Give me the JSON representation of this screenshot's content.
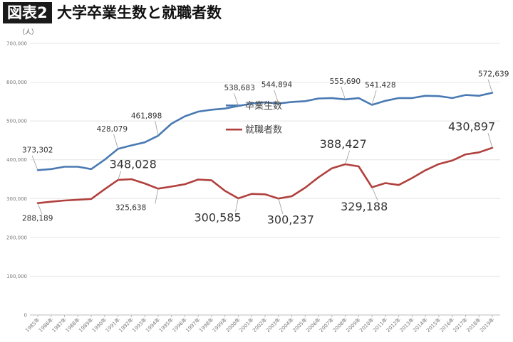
{
  "header": {
    "badge": "図表2",
    "title": "大学卒業生数と就職者数"
  },
  "chart_data": {
    "type": "line",
    "title": "大学卒業生数と就職者数",
    "ylabel": "（人）",
    "ylim": [
      0,
      700000
    ],
    "yticks": [
      "0",
      "100,000",
      "200,000",
      "300,000",
      "400,000",
      "500,000",
      "600,000",
      "700,000"
    ],
    "grid": true,
    "legend_position": "center",
    "categories": [
      "1985年",
      "1986年",
      "1987年",
      "1988年",
      "1989年",
      "1990年",
      "1991年",
      "1992年",
      "1993年",
      "1994年",
      "1995年",
      "1996年",
      "1997年",
      "1998年",
      "1999年",
      "2000年",
      "2001年",
      "2002年",
      "2003年",
      "2004年",
      "2005年",
      "2006年",
      "2007年",
      "2008年",
      "2009年",
      "2010年",
      "2011年",
      "2012年",
      "2013年",
      "2014年",
      "2015年",
      "2016年",
      "2017年",
      "2018年",
      "2019年"
    ],
    "series": [
      {
        "name": "卒業生数",
        "color": "#4a7ab3",
        "values": [
          373302,
          376000,
          382000,
          382000,
          376000,
          400000,
          428079,
          437000,
          445000,
          461898,
          493000,
          512000,
          524000,
          529000,
          532000,
          538683,
          545000,
          548000,
          544894,
          549000,
          551000,
          558000,
          559000,
          555690,
          559000,
          541428,
          552000,
          559000,
          559000,
          565000,
          564000,
          559000,
          567000,
          565000,
          572639
        ]
      },
      {
        "name": "就職者数",
        "color": "#b0403d",
        "values": [
          288189,
          292000,
          295000,
          297000,
          299000,
          324000,
          348028,
          350000,
          339000,
          325638,
          331000,
          337000,
          349000,
          347000,
          320000,
          300585,
          312000,
          311000,
          300237,
          306000,
          328000,
          355000,
          378000,
          388427,
          383000,
          329188,
          340000,
          335000,
          353000,
          373000,
          389000,
          398000,
          414000,
          419000,
          430897
        ]
      }
    ],
    "annotations": [
      {
        "series": 0,
        "index": 0,
        "text": "373,302",
        "size": "small"
      },
      {
        "series": 0,
        "index": 6,
        "text": "428,079",
        "size": "small"
      },
      {
        "series": 0,
        "index": 9,
        "text": "461,898",
        "size": "small"
      },
      {
        "series": 0,
        "index": 15,
        "text": "538,683",
        "size": "small"
      },
      {
        "series": 0,
        "index": 18,
        "text": "544,894",
        "size": "small"
      },
      {
        "series": 0,
        "index": 23,
        "text": "555,690",
        "size": "small"
      },
      {
        "series": 0,
        "index": 25,
        "text": "541,428",
        "size": "small"
      },
      {
        "series": 0,
        "index": 34,
        "text": "572,639",
        "size": "small"
      },
      {
        "series": 1,
        "index": 0,
        "text": "288,189",
        "size": "small"
      },
      {
        "series": 1,
        "index": 6,
        "text": "348,028",
        "size": "large"
      },
      {
        "series": 1,
        "index": 9,
        "text": "325,638",
        "size": "small"
      },
      {
        "series": 1,
        "index": 15,
        "text": "300,585",
        "size": "large"
      },
      {
        "series": 1,
        "index": 18,
        "text": "300,237",
        "size": "large"
      },
      {
        "series": 1,
        "index": 23,
        "text": "388,427",
        "size": "large"
      },
      {
        "series": 1,
        "index": 25,
        "text": "329,188",
        "size": "large"
      },
      {
        "series": 1,
        "index": 34,
        "text": "430,897",
        "size": "large"
      }
    ]
  }
}
